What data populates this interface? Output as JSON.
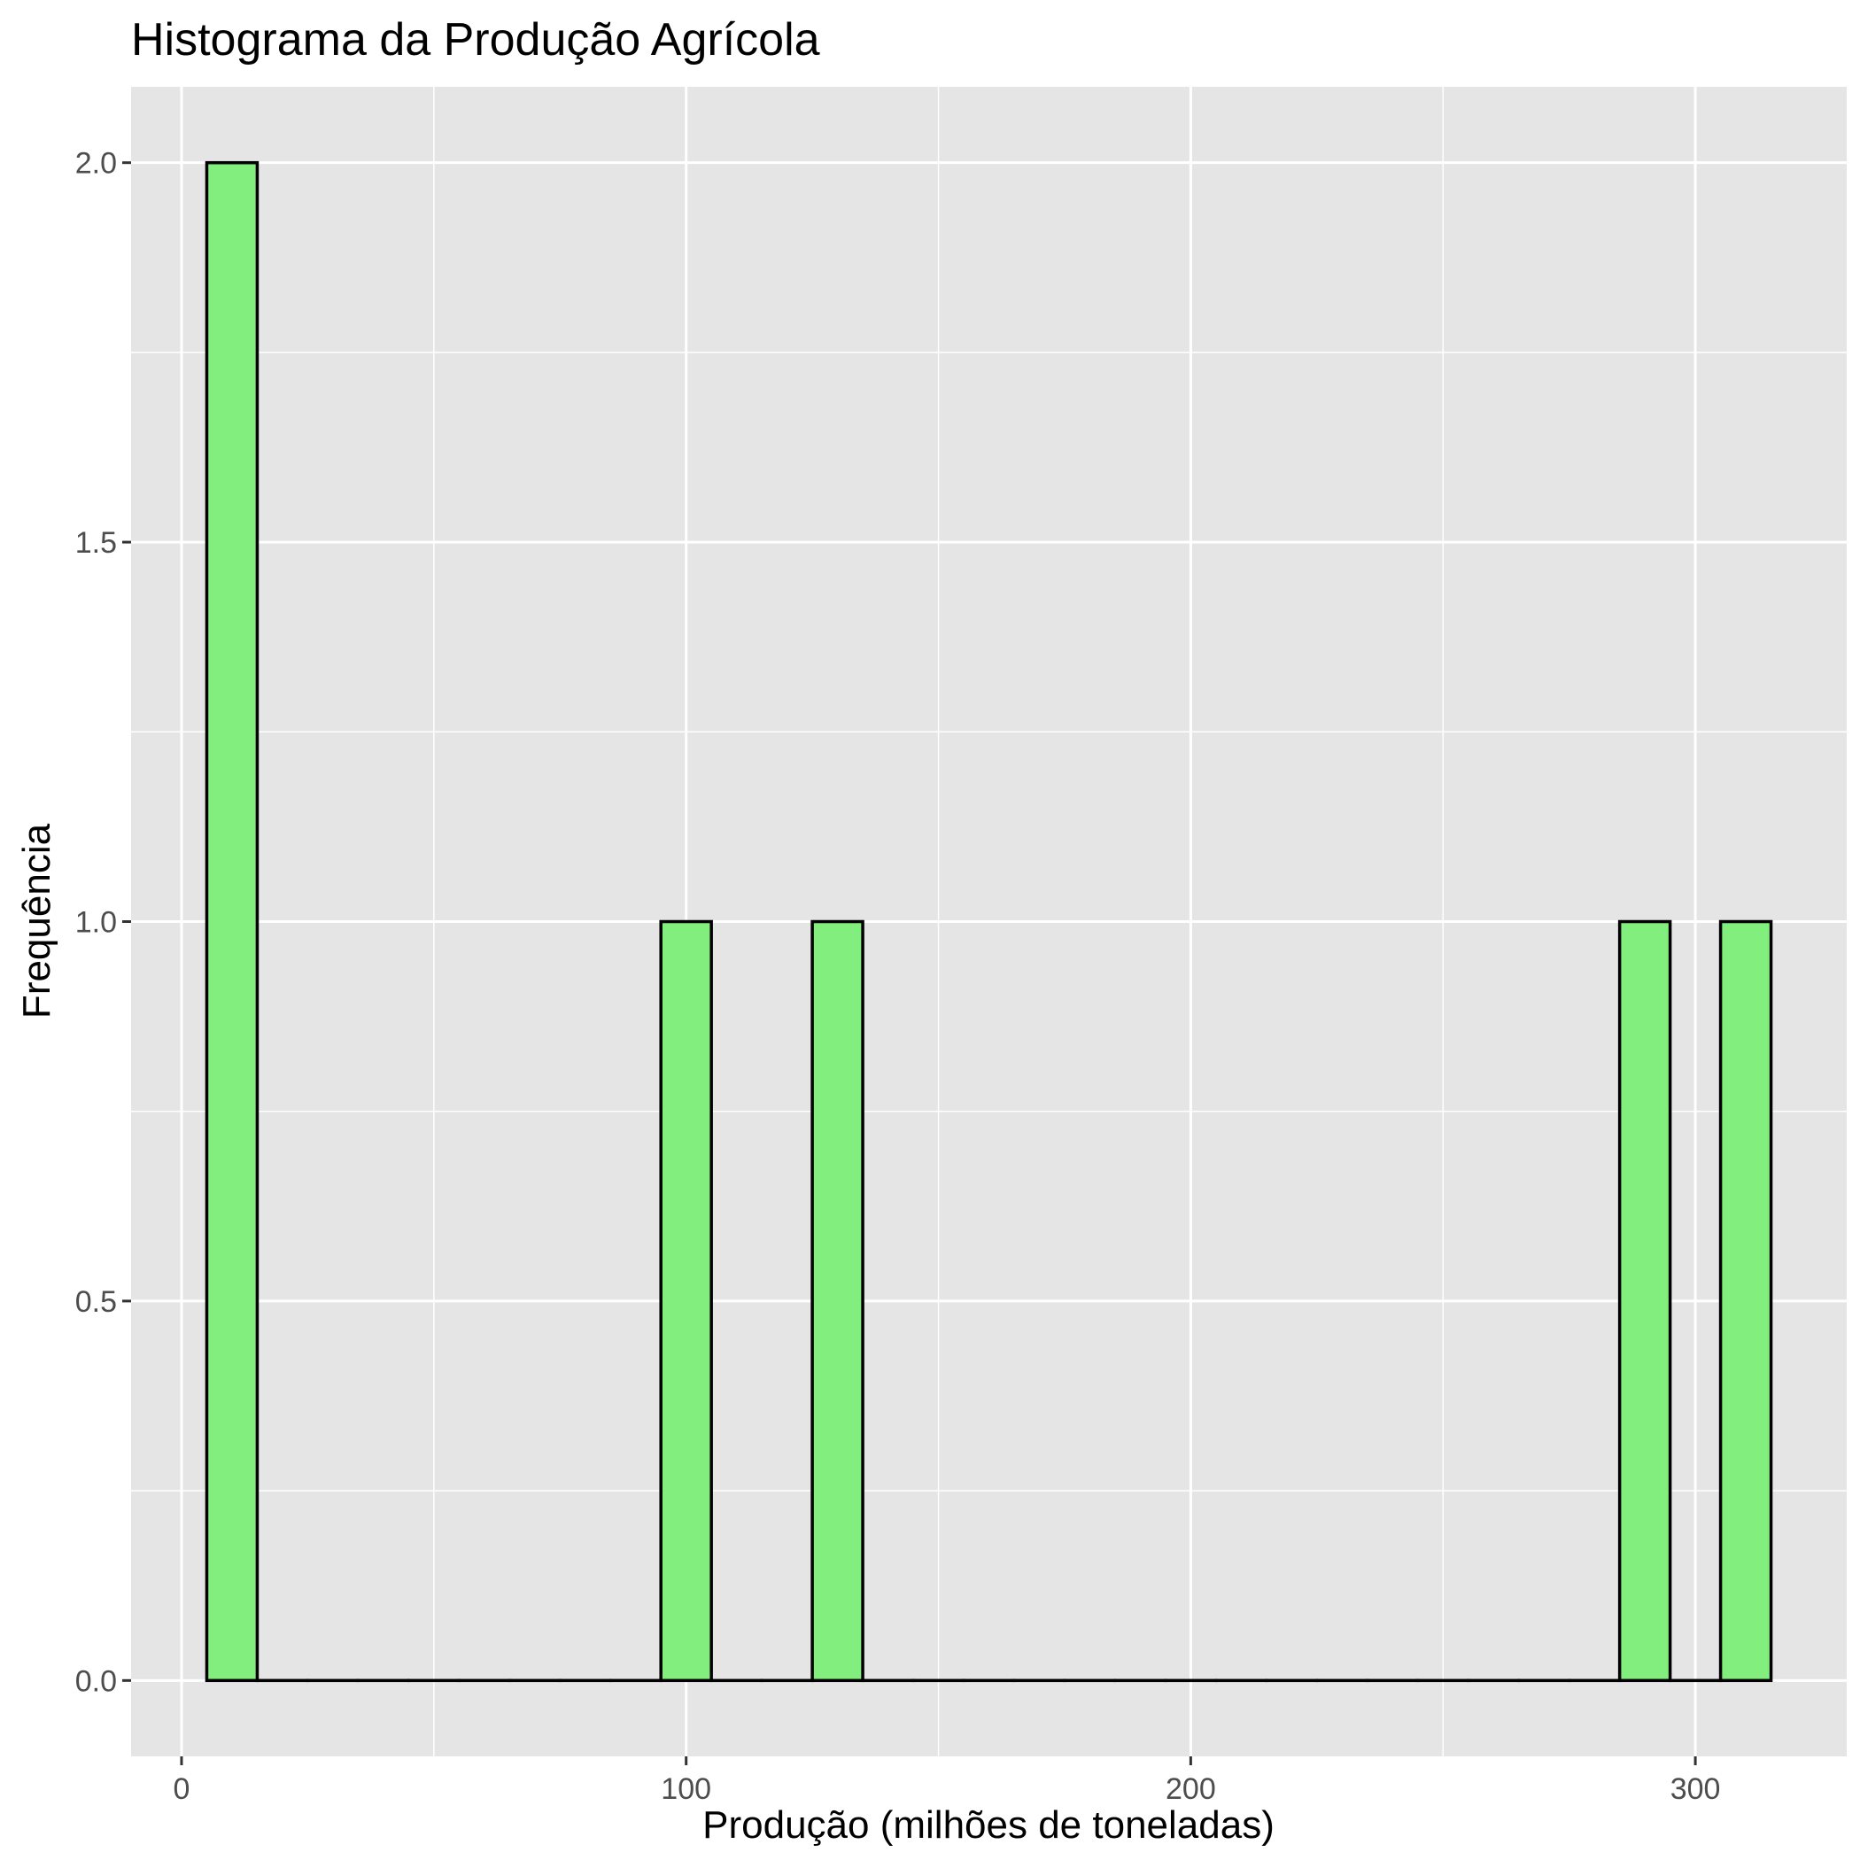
{
  "chart_data": {
    "type": "bar",
    "title": "Histograma da Produção Agrícola",
    "xlabel": "Produção (milhões de toneladas)",
    "ylabel": "Frequência",
    "xlim": [
      -10,
      330
    ],
    "ylim": [
      -0.1,
      2.1
    ],
    "x_ticks": [
      0,
      100,
      200,
      300
    ],
    "x_tick_labels": [
      "0",
      "100",
      "200",
      "300"
    ],
    "y_ticks": [
      0,
      0.5,
      1,
      1.5,
      2
    ],
    "y_tick_labels": [
      "0.0",
      "0.5",
      "1.0",
      "1.5",
      "2.0"
    ],
    "bin_width": 10,
    "bins": [
      {
        "x": 10,
        "count": 2
      },
      {
        "x": 20,
        "count": 0
      },
      {
        "x": 30,
        "count": 0
      },
      {
        "x": 40,
        "count": 0
      },
      {
        "x": 50,
        "count": 0
      },
      {
        "x": 60,
        "count": 0
      },
      {
        "x": 70,
        "count": 0
      },
      {
        "x": 80,
        "count": 0
      },
      {
        "x": 90,
        "count": 0
      },
      {
        "x": 100,
        "count": 1
      },
      {
        "x": 110,
        "count": 0
      },
      {
        "x": 120,
        "count": 0
      },
      {
        "x": 130,
        "count": 1
      },
      {
        "x": 140,
        "count": 0
      },
      {
        "x": 150,
        "count": 0
      },
      {
        "x": 160,
        "count": 0
      },
      {
        "x": 170,
        "count": 0
      },
      {
        "x": 180,
        "count": 0
      },
      {
        "x": 190,
        "count": 0
      },
      {
        "x": 200,
        "count": 0
      },
      {
        "x": 210,
        "count": 0
      },
      {
        "x": 220,
        "count": 0
      },
      {
        "x": 230,
        "count": 0
      },
      {
        "x": 240,
        "count": 0
      },
      {
        "x": 250,
        "count": 0
      },
      {
        "x": 260,
        "count": 0
      },
      {
        "x": 270,
        "count": 0
      },
      {
        "x": 280,
        "count": 0
      },
      {
        "x": 290,
        "count": 1
      },
      {
        "x": 300,
        "count": 0
      },
      {
        "x": 310,
        "count": 1
      }
    ],
    "grid": true,
    "legend": "none",
    "colors": {
      "bar_fill": "#82ee7d",
      "bar_outline": "#000000",
      "panel": "#e5e5e5",
      "grid": "#ffffff"
    }
  }
}
